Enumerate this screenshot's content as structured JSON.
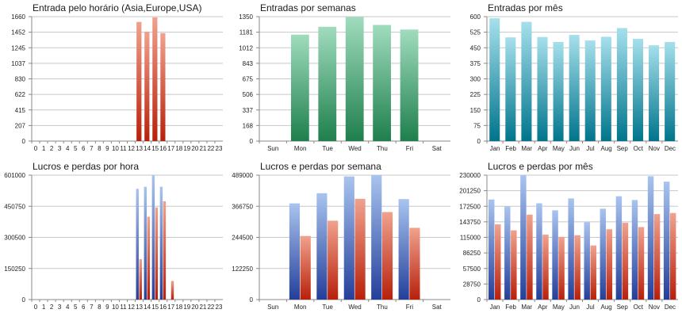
{
  "colors": {
    "red_top": "#f0a28e",
    "red_bottom": "#b8200a",
    "green_top": "#a0dcbe",
    "green_bottom": "#1e7f4c",
    "cyan_top": "#a6e0ec",
    "cyan_bottom": "#00748c",
    "blue_top": "#a9c4ef",
    "blue_bottom": "#243f9a",
    "loss_top": "#f0a28e",
    "loss_bottom": "#b8200a",
    "gridline": "#c7c7c7",
    "axis": "#888888"
  },
  "chart_data": [
    {
      "type": "bar",
      "title": "Entrada pelo horário (Asia,Europe,USA)",
      "categories": [
        "0",
        "1",
        "2",
        "3",
        "4",
        "5",
        "6",
        "7",
        "8",
        "9",
        "10",
        "11",
        "12",
        "13",
        "14",
        "15",
        "16",
        "17",
        "18",
        "19",
        "20",
        "21",
        "22",
        "23"
      ],
      "yticks": [
        "0",
        "207",
        "415",
        "622",
        "830",
        "1037",
        "1245",
        "1452",
        "1660"
      ],
      "ylim": [
        0,
        1660
      ],
      "series": [
        {
          "name": "Entradas",
          "color": "red",
          "values": [
            0,
            0,
            0,
            0,
            0,
            0,
            0,
            0,
            0,
            0,
            0,
            0,
            0,
            1590,
            1460,
            1650,
            1440,
            0,
            0,
            0,
            0,
            0,
            0,
            0
          ]
        }
      ]
    },
    {
      "type": "bar",
      "title": "Entradas por semanas",
      "categories": [
        "Sun",
        "Mon",
        "Tue",
        "Wed",
        "Thu",
        "Fri",
        "Sat"
      ],
      "yticks": [
        "0",
        "168",
        "337",
        "506",
        "675",
        "843",
        "1012",
        "1181",
        "1350"
      ],
      "ylim": [
        0,
        1350
      ],
      "series": [
        {
          "name": "Entradas",
          "color": "green",
          "values": [
            0,
            1155,
            1240,
            1345,
            1260,
            1210,
            0
          ]
        }
      ]
    },
    {
      "type": "bar",
      "title": "Entradas por mês",
      "categories": [
        "Jan",
        "Feb",
        "Mar",
        "Apr",
        "May",
        "Jun",
        "Jul",
        "Aug",
        "Sep",
        "Oct",
        "Nov",
        "Dec"
      ],
      "yticks": [
        "0",
        "75",
        "150",
        "225",
        "300",
        "375",
        "450",
        "525",
        "600"
      ],
      "ylim": [
        0,
        600
      ],
      "series": [
        {
          "name": "Entradas",
          "color": "cyan",
          "values": [
            592,
            500,
            575,
            502,
            478,
            512,
            485,
            503,
            545,
            493,
            462,
            478
          ]
        }
      ]
    },
    {
      "type": "bar",
      "title": "Lucros e perdas por hora",
      "categories": [
        "0",
        "1",
        "2",
        "3",
        "4",
        "5",
        "6",
        "7",
        "8",
        "9",
        "10",
        "11",
        "12",
        "13",
        "14",
        "15",
        "16",
        "17",
        "18",
        "19",
        "20",
        "21",
        "22",
        "23"
      ],
      "yticks": [
        "0",
        "150250",
        "300500",
        "450750",
        "601000"
      ],
      "ylim": [
        0,
        601000
      ],
      "series": [
        {
          "name": "Lucros",
          "color": "blue",
          "values": [
            0,
            0,
            0,
            0,
            0,
            0,
            0,
            0,
            0,
            0,
            0,
            0,
            0,
            535000,
            545000,
            601000,
            545000,
            0,
            0,
            0,
            0,
            0,
            0,
            0
          ]
        },
        {
          "name": "Perdas",
          "color": "loss",
          "values": [
            0,
            0,
            0,
            0,
            0,
            0,
            0,
            0,
            0,
            0,
            0,
            0,
            0,
            195000,
            400000,
            445000,
            475000,
            90000,
            0,
            0,
            0,
            0,
            0,
            0
          ]
        }
      ]
    },
    {
      "type": "bar",
      "title": "Lucros e perdas por semana",
      "categories": [
        "Sun",
        "Mon",
        "Tue",
        "Wed",
        "Thu",
        "Fri",
        "Sat"
      ],
      "yticks": [
        "0",
        "122250",
        "244500",
        "366750",
        "489000"
      ],
      "ylim": [
        0,
        489000
      ],
      "series": [
        {
          "name": "Lucros",
          "color": "blue",
          "values": [
            0,
            378000,
            418000,
            484000,
            489000,
            395000,
            0
          ]
        },
        {
          "name": "Perdas",
          "color": "loss",
          "values": [
            0,
            250000,
            310000,
            396000,
            344000,
            282000,
            0
          ]
        }
      ]
    },
    {
      "type": "bar",
      "title": "Lucros e perdas por mês",
      "categories": [
        "Jan",
        "Feb",
        "Mar",
        "Apr",
        "May",
        "Jun",
        "Jul",
        "Aug",
        "Sep",
        "Oct",
        "Nov",
        "Dec"
      ],
      "yticks": [
        "0",
        "28750",
        "57500",
        "86250",
        "115000",
        "143750",
        "172500",
        "201250",
        "230000"
      ],
      "ylim": [
        0,
        230000
      ],
      "series": [
        {
          "name": "Lucros",
          "color": "blue",
          "values": [
            185000,
            172000,
            230000,
            178000,
            165000,
            187000,
            143000,
            168000,
            191000,
            184000,
            228000,
            218000
          ]
        },
        {
          "name": "Perdas",
          "color": "loss",
          "values": [
            139000,
            128000,
            157000,
            120000,
            116000,
            119000,
            100000,
            130000,
            142000,
            134000,
            158000,
            160000
          ]
        }
      ]
    }
  ]
}
